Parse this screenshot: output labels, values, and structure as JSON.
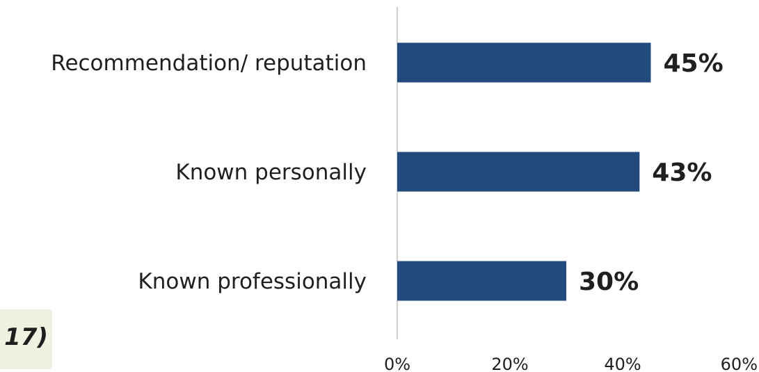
{
  "chart_data": {
    "type": "bar",
    "orientation": "horizontal",
    "categories": [
      "Recommendation/ reputation",
      "Known personally",
      "Known professionally"
    ],
    "values": [
      45,
      43,
      30
    ],
    "value_labels": [
      "45%",
      "43%",
      "30%"
    ],
    "xlim": [
      0,
      60
    ],
    "x_ticks": [
      "0%",
      "20%",
      "40%",
      "60%"
    ],
    "bar_color": "#234a7d",
    "grid": false,
    "legend": "none"
  },
  "note": {
    "text": "17)"
  }
}
